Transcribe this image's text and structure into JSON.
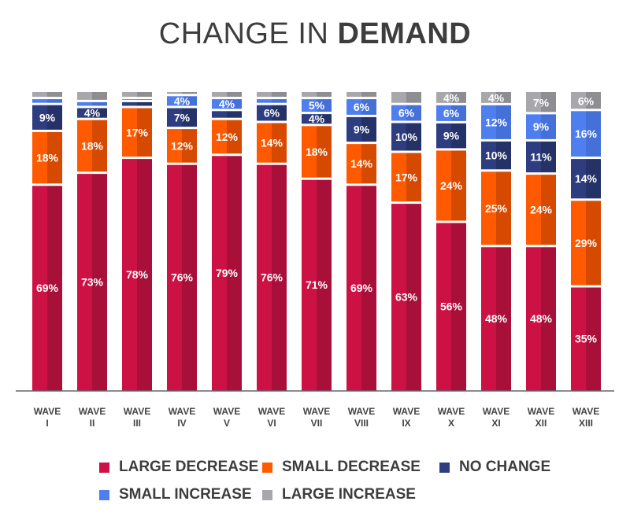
{
  "chart_data": {
    "type": "bar",
    "stacked": true,
    "title_light": "CHANGE IN",
    "title_bold": "DEMAND",
    "categories": [
      [
        "WAVE",
        "I"
      ],
      [
        "WAVE",
        "II"
      ],
      [
        "WAVE",
        "III"
      ],
      [
        "WAVE",
        "IV"
      ],
      [
        "WAVE",
        "V"
      ],
      [
        "WAVE",
        "VI"
      ],
      [
        "WAVE",
        "VII"
      ],
      [
        "WAVE",
        "VIII"
      ],
      [
        "WAVE",
        "IX"
      ],
      [
        "WAVE",
        "X"
      ],
      [
        "WAVE",
        "XI"
      ],
      [
        "WAVE",
        "XII"
      ],
      [
        "WAVE",
        "XIII"
      ]
    ],
    "ylim": [
      0,
      100
    ],
    "series": [
      {
        "name": "LARGE DECREASE",
        "color": "#cc1144",
        "values": [
          69,
          73,
          78,
          76,
          79,
          76,
          71,
          69,
          63,
          56,
          48,
          48,
          35
        ]
      },
      {
        "name": "SMALL DECREASE",
        "color": "#ff5a00",
        "values": [
          18,
          18,
          17,
          12,
          12,
          14,
          18,
          14,
          17,
          24,
          25,
          24,
          29
        ]
      },
      {
        "name": "NO CHANGE",
        "color": "#2e3d80",
        "values": [
          9,
          4,
          2,
          7,
          3,
          6,
          4,
          9,
          10,
          9,
          10,
          11,
          14
        ]
      },
      {
        "name": "SMALL INCREASE",
        "color": "#4f7fee",
        "values": [
          2,
          2,
          1,
          4,
          4,
          2,
          5,
          6,
          6,
          6,
          12,
          9,
          16
        ]
      },
      {
        "name": "LARGE INCREASE",
        "color": "#a8a8ac",
        "values": [
          2,
          3,
          2,
          1,
          2,
          2,
          2,
          2,
          4,
          4,
          4,
          7,
          6
        ]
      }
    ],
    "data_labels": [
      [
        "69%",
        "18%",
        "9%",
        "",
        ""
      ],
      [
        "73%",
        "18%",
        "4%",
        "",
        ""
      ],
      [
        "78%",
        "17%",
        "",
        "",
        ""
      ],
      [
        "76%",
        "12%",
        "7%",
        "4%",
        ""
      ],
      [
        "79%",
        "12%",
        "",
        "4%",
        ""
      ],
      [
        "76%",
        "14%",
        "6%",
        "",
        ""
      ],
      [
        "71%",
        "18%",
        "4%",
        "5%",
        ""
      ],
      [
        "69%",
        "14%",
        "9%",
        "6%",
        ""
      ],
      [
        "63%",
        "17%",
        "10%",
        "6%",
        ""
      ],
      [
        "56%",
        "24%",
        "9%",
        "6%",
        "4%"
      ],
      [
        "48%",
        "25%",
        "10%",
        "12%",
        "4%"
      ],
      [
        "48%",
        "24%",
        "11%",
        "9%",
        "7%"
      ],
      [
        "35%",
        "29%",
        "14%",
        "16%",
        "6%"
      ]
    ],
    "legend_position": "bottom",
    "grid": false
  }
}
